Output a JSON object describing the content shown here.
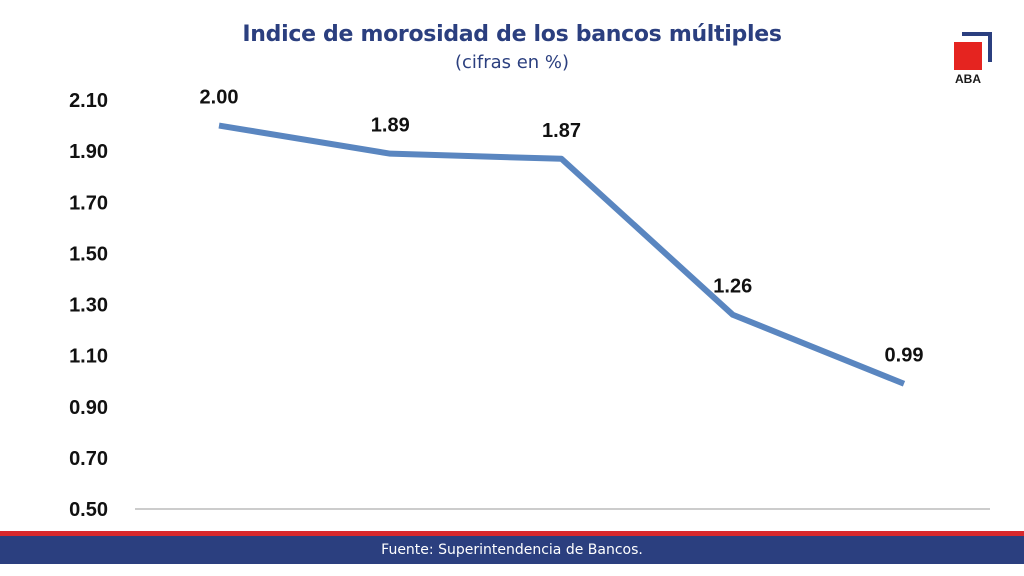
{
  "header": {
    "title": "Indice de morosidad de los bancos múltiples",
    "subtitle": "(cifras en %)"
  },
  "logo": {
    "text": "ABA",
    "colors": {
      "red": "#e52420",
      "navy": "#2b3f7f"
    }
  },
  "footer": {
    "source": "Fuente: Superintendencia de Bancos."
  },
  "chart_data": {
    "type": "line",
    "title": "Indice de morosidad de los bancos múltiples",
    "subtitle": "(cifras en %)",
    "xlabel": "",
    "ylabel": "",
    "ylim": [
      0.5,
      2.1
    ],
    "yticks": [
      "0.50",
      "0.70",
      "0.90",
      "1.10",
      "1.30",
      "1.50",
      "1.70",
      "1.90",
      "2.10"
    ],
    "categories": [
      "",
      "",
      "",
      "",
      ""
    ],
    "series": [
      {
        "values": [
          2.0,
          1.89,
          1.87,
          1.26,
          0.99
        ],
        "labels": [
          "2.00",
          "1.89",
          "1.87",
          "1.26",
          "0.99"
        ],
        "color": "#5a86c0"
      }
    ],
    "grid": false,
    "legend": "none"
  }
}
